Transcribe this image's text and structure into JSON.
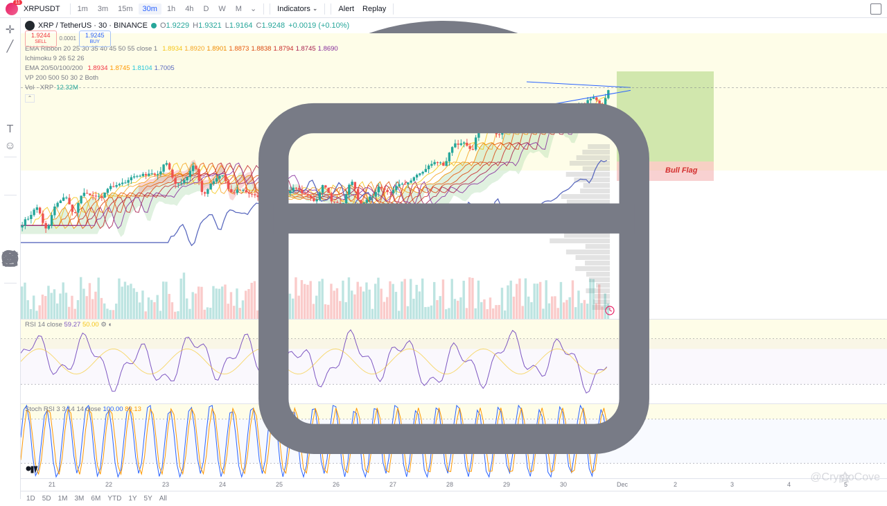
{
  "toolbar": {
    "symbol": "XRPUSDT",
    "timeframes": [
      "1m",
      "3m",
      "15m",
      "30m",
      "1h",
      "4h",
      "D",
      "W",
      "M"
    ],
    "active_tf": "30m",
    "indicators_label": "Indicators",
    "alert_label": "Alert",
    "replay_label": "Replay"
  },
  "header": {
    "pair": "XRP / TetherUS · 30 · BINANCE",
    "o": "1.9229",
    "h": "1.9321",
    "l": "1.9164",
    "c": "1.9248",
    "chg": "+0.0019 (+0.10%)",
    "sell": "1.9244",
    "buy": "1.9245",
    "spread": "0.0001",
    "sell_label": "SELL",
    "buy_label": "BUY"
  },
  "indicators": {
    "ema_ribbon": {
      "label": "EMA Ribbon 20 25 30 35 40 45 50 55 close 1",
      "vals": [
        "1.8934",
        "1.8920",
        "1.8901",
        "1.8873",
        "1.8838",
        "1.8794",
        "1.8745",
        "1.8690"
      ],
      "colors": [
        "#f5c518",
        "#f5a623",
        "#f08c00",
        "#e8590c",
        "#d9480f",
        "#c92a2a",
        "#a61e4d",
        "#862e9c"
      ]
    },
    "ichimoku": {
      "label": "Ichimoku 9 26 52 26"
    },
    "ema4": {
      "label": "EMA 20/50/100/200",
      "vals": [
        "1.8934",
        "1.8745",
        "1.8104",
        "1.7005"
      ],
      "colors": [
        "#f23645",
        "#ff9800",
        "#26c6da",
        "#5b6abf"
      ]
    },
    "vp": {
      "label": "VP 200 500 50 30 2 Both"
    },
    "vol": {
      "label": "Vol · XRP",
      "val": "12.32M",
      "color": "#26a69a"
    }
  },
  "rsi": {
    "label": "RSI 14 close",
    "val": "59.27",
    "val2": "50.00",
    "color": "#7e57c2",
    "bands": [
      70,
      30
    ]
  },
  "stoch": {
    "label": "Stoch RSI 3 3 14 14 close",
    "k": "100.00",
    "d": "89.13",
    "k_color": "#2962ff",
    "d_color": "#ff9800",
    "bands": [
      80,
      20
    ]
  },
  "annotation": {
    "text": "Bull Flag",
    "color": "#d32f2f",
    "box_green": "#9ccc65",
    "box_red": "#ef9a9a"
  },
  "xaxis": [
    "21",
    "22",
    "23",
    "24",
    "25",
    "26",
    "27",
    "28",
    "29",
    "30",
    "Dec",
    "2",
    "3",
    "4",
    "5"
  ],
  "bottom": [
    "1D",
    "5D",
    "1M",
    "3M",
    "6M",
    "YTD",
    "1Y",
    "5Y",
    "All"
  ],
  "watermark": "@CryptoCove",
  "chart": {
    "candle_up": "#26a69a",
    "candle_down": "#ef5350",
    "cloud_up": "#a5d6a7",
    "cloud_down": "#ef9a9a",
    "vp_color": "#b0b0b0"
  }
}
